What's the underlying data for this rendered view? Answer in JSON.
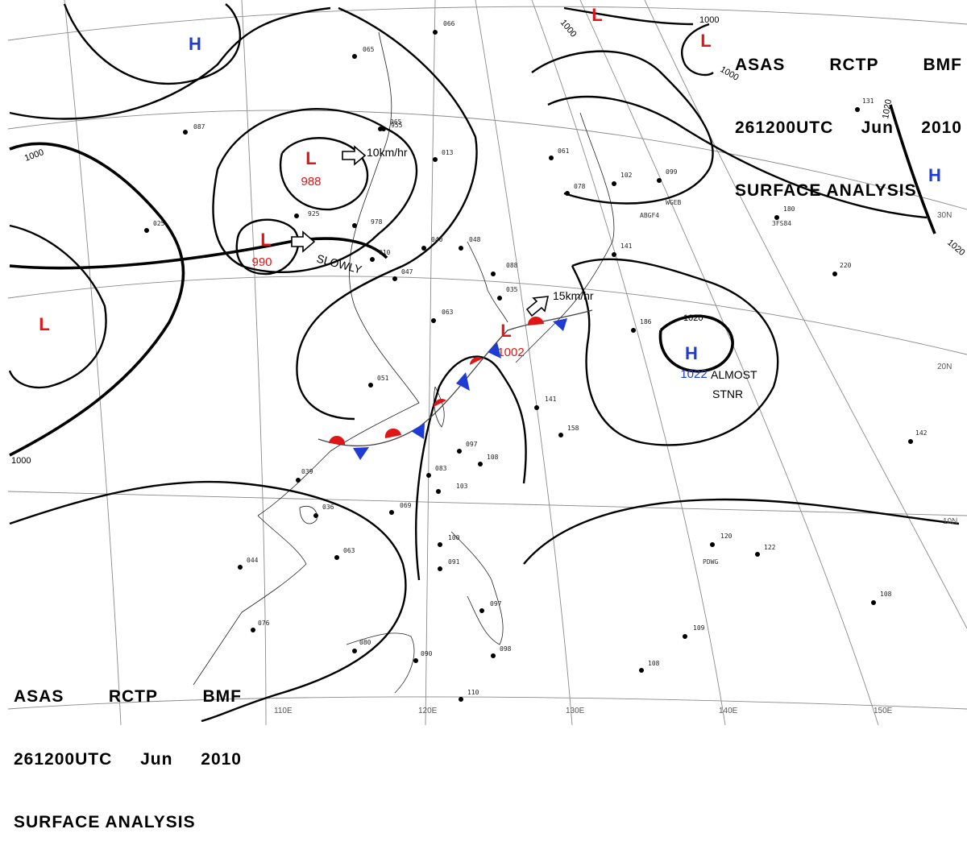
{
  "header": {
    "line1": [
      "ASAS",
      "RCTP",
      "BMF"
    ],
    "line2": [
      "261200UTC",
      "Jun",
      "2010"
    ],
    "line3": "SURFACE ANALYSIS"
  },
  "pressure_systems": [
    {
      "type": "H",
      "value": ""
    },
    {
      "type": "L",
      "value": ""
    },
    {
      "type": "L",
      "value": "988"
    },
    {
      "type": "L",
      "value": "990"
    },
    {
      "type": "L",
      "value": ""
    },
    {
      "type": "L",
      "value": "1002"
    },
    {
      "type": "L",
      "value": ""
    },
    {
      "type": "H",
      "value": ""
    },
    {
      "type": "H",
      "value": "1022"
    }
  ],
  "isobar_labels": [
    "1000",
    "1000",
    "1000",
    "1000",
    "1000",
    "1020",
    "1020",
    "1020"
  ],
  "motion_labels": [
    "10km/hr",
    "SLOWLY",
    "15km/hr",
    "ALMOST",
    "STNR"
  ],
  "grid_labels": [
    "110E",
    "120E",
    "130E",
    "140E",
    "150E",
    "30N",
    "20N",
    "10N"
  ],
  "ship_ids": [
    "ABGF4",
    "WGEB",
    "3FS84",
    "PDWG"
  ],
  "station_values": [
    "066",
    "955",
    "925",
    "978",
    "040",
    "048",
    "088",
    "063",
    "051",
    "039",
    "036",
    "063",
    "044",
    "076",
    "080",
    "090",
    "110",
    "069",
    "103",
    "083",
    "108",
    "097",
    "100",
    "091",
    "097",
    "098",
    "141",
    "158",
    "186",
    "220",
    "180",
    "142",
    "120",
    "122",
    "108",
    "109",
    "108",
    "061",
    "078",
    "102",
    "099",
    "131",
    "087",
    "025",
    "065",
    "965",
    "013",
    "047",
    "010",
    "035",
    "141"
  ],
  "colors": {
    "high": "#1f3bd6",
    "low": "#e01515",
    "warm_front": "#e01515",
    "cold_front": "#1f3bd6",
    "isobar": "#000000",
    "coast": "#222222",
    "grid": "#8a8a8a"
  }
}
